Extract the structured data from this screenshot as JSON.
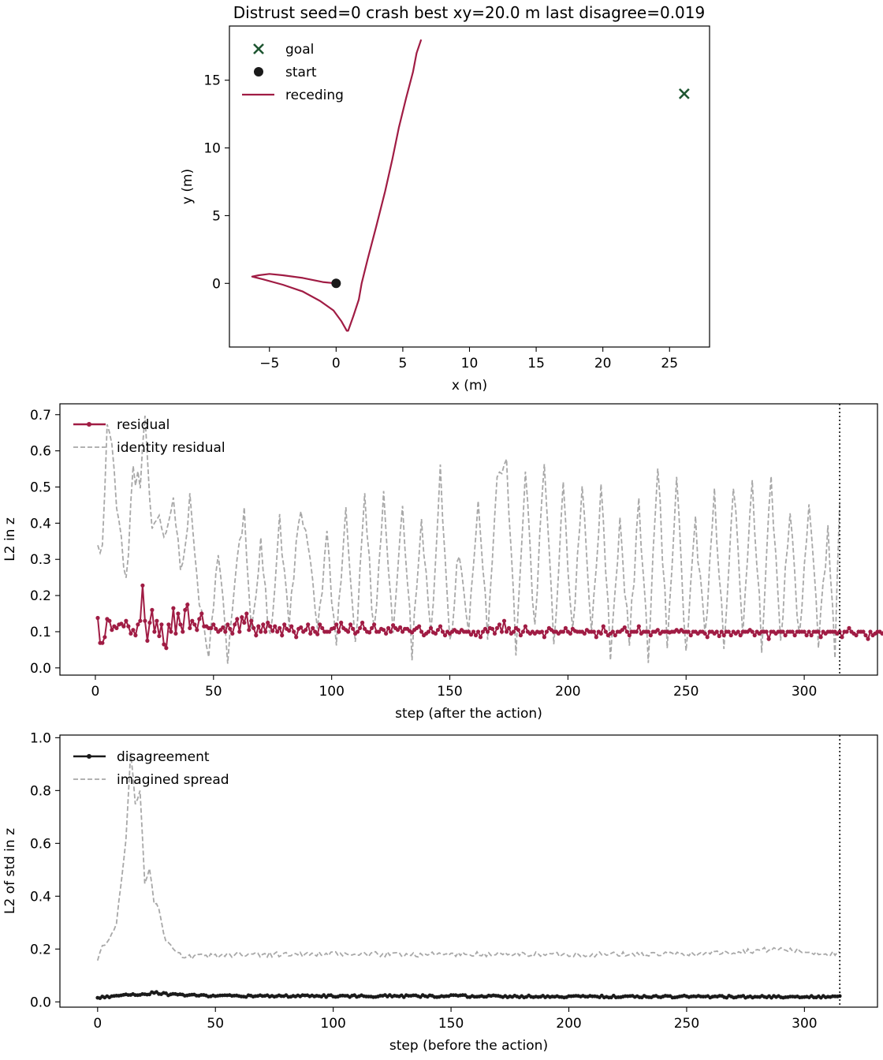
{
  "chart_data": [
    {
      "type": "line",
      "title": "Distrust  seed=0  crash  best xy=20.0 m  last disagree=0.019",
      "xlabel": "x (m)",
      "ylabel": "y (m)",
      "xlim": [
        -8,
        28
      ],
      "ylim": [
        -4.7,
        19.0
      ],
      "xticks": [
        -5,
        0,
        5,
        10,
        15,
        20,
        25
      ],
      "yticks": [
        0,
        5,
        10,
        15
      ],
      "legend_position": "upper-left",
      "grid": false,
      "colors": {
        "goal": "#1e5631",
        "start": "#1a1a1a",
        "receding": "#a01c44"
      },
      "goal": {
        "label": "goal",
        "x": 26.1,
        "y": 14.0
      },
      "start": {
        "label": "start",
        "x": 0.0,
        "y": 0.0
      },
      "series": [
        {
          "name": "receding",
          "x": [
            0,
            -1.0,
            -2.5,
            -4.0,
            -5.0,
            -5.8,
            -6.3,
            -5.5,
            -4.0,
            -2.5,
            -1.2,
            -0.2,
            0.4,
            0.8,
            0.9,
            1.3,
            1.7,
            1.9,
            2.4,
            3.0,
            3.6,
            4.2,
            4.7,
            5.2,
            5.7,
            6.1,
            6.3
          ],
          "y": [
            0,
            0.1,
            0.4,
            0.6,
            0.7,
            0.6,
            0.5,
            0.3,
            -0.1,
            -0.6,
            -1.3,
            -2.0,
            -2.8,
            -3.5,
            -3.5,
            -2.4,
            -1.2,
            0.0,
            1.8,
            4.2,
            6.8,
            9.2,
            11.5,
            13.7,
            15.6,
            17.0,
            18.0
          ]
        }
      ]
    },
    {
      "type": "line",
      "title": "",
      "xlabel": "step (after the action)",
      "ylabel": "L2 in z",
      "xlim": [
        -15,
        331
      ],
      "ylim": [
        -0.02,
        0.73
      ],
      "xticks": [
        0,
        50,
        100,
        150,
        200,
        250,
        300
      ],
      "yticks": [
        0.0,
        0.1,
        0.2,
        0.3,
        0.4,
        0.5,
        0.6,
        0.7
      ],
      "vline_x": 315,
      "legend_position": "upper-left",
      "grid": false,
      "colors": {
        "residual": "#a01c44",
        "identity": "#a8a8a8",
        "vline": "#000000"
      },
      "series": [
        {
          "name": "residual",
          "style": "solid-markers",
          "x_start": 1,
          "values": [
            0.138,
            0.069,
            0.069,
            0.085,
            0.135,
            0.13,
            0.105,
            0.115,
            0.11,
            0.12,
            0.122,
            0.115,
            0.13,
            0.115,
            0.095,
            0.105,
            0.09,
            0.12,
            0.13,
            0.228,
            0.13,
            0.075,
            0.125,
            0.16,
            0.1,
            0.13,
            0.088,
            0.12,
            0.065,
            0.055,
            0.12,
            0.1,
            0.165,
            0.095,
            0.15,
            0.12,
            0.1,
            0.16,
            0.175,
            0.11,
            0.13,
            0.12,
            0.105,
            0.135,
            0.15,
            0.115,
            0.115,
            0.11,
            0.11,
            0.12,
            0.108,
            0.1,
            0.105,
            0.112,
            0.1,
            0.12,
            0.108,
            0.095,
            0.12,
            0.135,
            0.1,
            0.14,
            0.125,
            0.15,
            0.105,
            0.13,
            0.11,
            0.09,
            0.115,
            0.1,
            0.12,
            0.1,
            0.125,
            0.115,
            0.102,
            0.115,
            0.1,
            0.11,
            0.09,
            0.12,
            0.108,
            0.103,
            0.115,
            0.1,
            0.085,
            0.108,
            0.112,
            0.1,
            0.105,
            0.12,
            0.095,
            0.11,
            0.1,
            0.093,
            0.12,
            0.11,
            0.1,
            0.1,
            0.1,
            0.108,
            0.11,
            0.12,
            0.1,
            0.125,
            0.11,
            0.105,
            0.1,
            0.12,
            0.108,
            0.095,
            0.1,
            0.11,
            0.125,
            0.108,
            0.1,
            0.098,
            0.11,
            0.12,
            0.1,
            0.1,
            0.108,
            0.105,
            0.095,
            0.11,
            0.1,
            0.118,
            0.11,
            0.105,
            0.112,
            0.1,
            0.108,
            0.108,
            0.102,
            0.098,
            0.105,
            0.11,
            0.115,
            0.1,
            0.09,
            0.095,
            0.1,
            0.11,
            0.098,
            0.095,
            0.105,
            0.115,
            0.1,
            0.09,
            0.1,
            0.095,
            0.1,
            0.105,
            0.1,
            0.098,
            0.105,
            0.1,
            0.1,
            0.1,
            0.092,
            0.1,
            0.09,
            0.1,
            0.085,
            0.1,
            0.108,
            0.1,
            0.11,
            0.108,
            0.095,
            0.11,
            0.12,
            0.1,
            0.13,
            0.1,
            0.11,
            0.095,
            0.1,
            0.11,
            0.105,
            0.09,
            0.1,
            0.115,
            0.1,
            0.095,
            0.1,
            0.095,
            0.1,
            0.098,
            0.1,
            0.085,
            0.1,
            0.11,
            0.105,
            0.1,
            0.1,
            0.095,
            0.1,
            0.1,
            0.11,
            0.1,
            0.095,
            0.108,
            0.102,
            0.1,
            0.1,
            0.1,
            0.095,
            0.105,
            0.1,
            0.1,
            0.1,
            0.085,
            0.1,
            0.095,
            0.115,
            0.1,
            0.09,
            0.095,
            0.1,
            0.09,
            0.1,
            0.1,
            0.105,
            0.112,
            0.1,
            0.09,
            0.1,
            0.1,
            0.1,
            0.115,
            0.095,
            0.1,
            0.1,
            0.1,
            0.09,
            0.1,
            0.1,
            0.105,
            0.095,
            0.1,
            0.1,
            0.1,
            0.098,
            0.1,
            0.1,
            0.105,
            0.1,
            0.105,
            0.1,
            0.1,
            0.1,
            0.09,
            0.1,
            0.1,
            0.095,
            0.1,
            0.1,
            0.095,
            0.085,
            0.1,
            0.1,
            0.095,
            0.1,
            0.088,
            0.1,
            0.09,
            0.1,
            0.1,
            0.09,
            0.1,
            0.095,
            0.1,
            0.09,
            0.1,
            0.1,
            0.1,
            0.105,
            0.1,
            0.09,
            0.1,
            0.095,
            0.1,
            0.1,
            0.1,
            0.08,
            0.1,
            0.1,
            0.095,
            0.1,
            0.1,
            0.1,
            0.09,
            0.1,
            0.1,
            0.1,
            0.09,
            0.1,
            0.1,
            0.1,
            0.1,
            0.09,
            0.1,
            0.09,
            0.1,
            0.1,
            0.1,
            0.085,
            0.1,
            0.095,
            0.1,
            0.1,
            0.1,
            0.1,
            0.095,
            0.1,
            0.085,
            0.1,
            0.1,
            0.11,
            0.1,
            0.095,
            0.09,
            0.1,
            0.1,
            0.1,
            0.09,
            0.08,
            0.1,
            0.09,
            0.095,
            0.1,
            0.1,
            0.095,
            0.1,
            0.15
          ]
        },
        {
          "name": "identity residual",
          "style": "dashed",
          "x_start": 1,
          "x_end": 315,
          "keypoints": [
            [
              1,
              0.33
            ],
            [
              3,
              0.32
            ],
            [
              5,
              0.68
            ],
            [
              7,
              0.6
            ],
            [
              10,
              0.4
            ],
            [
              13,
              0.23
            ],
            [
              16,
              0.55
            ],
            [
              19,
              0.5
            ],
            [
              21,
              0.68
            ],
            [
              24,
              0.38
            ],
            [
              27,
              0.42
            ],
            [
              30,
              0.36
            ],
            [
              33,
              0.5
            ],
            [
              36,
              0.25
            ],
            [
              40,
              0.47
            ],
            [
              44,
              0.2
            ],
            [
              48,
              0.05
            ],
            [
              52,
              0.3
            ],
            [
              56,
              0.04
            ],
            [
              60,
              0.33
            ],
            [
              63,
              0.42
            ],
            [
              66,
              0.1
            ],
            [
              70,
              0.36
            ],
            [
              74,
              0.07
            ],
            [
              78,
              0.4
            ],
            [
              82,
              0.1
            ],
            [
              86,
              0.42
            ],
            [
              90,
              0.35
            ],
            [
              94,
              0.1
            ],
            [
              98,
              0.35
            ],
            [
              102,
              0.07
            ],
            [
              106,
              0.44
            ],
            [
              110,
              0.05
            ],
            [
              114,
              0.48
            ],
            [
              118,
              0.09
            ],
            [
              122,
              0.49
            ],
            [
              126,
              0.1
            ],
            [
              130,
              0.45
            ],
            [
              134,
              0.04
            ],
            [
              138,
              0.4
            ],
            [
              142,
              0.09
            ],
            [
              146,
              0.54
            ],
            [
              150,
              0.06
            ],
            [
              154,
              0.33
            ],
            [
              158,
              0.1
            ],
            [
              162,
              0.44
            ],
            [
              166,
              0.1
            ],
            [
              170,
              0.53
            ],
            [
              174,
              0.57
            ],
            [
              178,
              0.06
            ],
            [
              182,
              0.55
            ],
            [
              186,
              0.1
            ],
            [
              190,
              0.57
            ],
            [
              194,
              0.06
            ],
            [
              198,
              0.5
            ],
            [
              202,
              0.08
            ],
            [
              206,
              0.52
            ],
            [
              210,
              0.1
            ],
            [
              214,
              0.49
            ],
            [
              218,
              0.05
            ],
            [
              222,
              0.4
            ],
            [
              226,
              0.07
            ],
            [
              230,
              0.45
            ],
            [
              234,
              0.04
            ],
            [
              238,
              0.56
            ],
            [
              242,
              0.07
            ],
            [
              246,
              0.52
            ],
            [
              250,
              0.04
            ],
            [
              254,
              0.39
            ],
            [
              258,
              0.08
            ],
            [
              262,
              0.47
            ],
            [
              266,
              0.06
            ],
            [
              270,
              0.52
            ],
            [
              274,
              0.08
            ],
            [
              278,
              0.52
            ],
            [
              282,
              0.07
            ],
            [
              286,
              0.52
            ],
            [
              290,
              0.08
            ],
            [
              294,
              0.43
            ],
            [
              298,
              0.07
            ],
            [
              302,
              0.45
            ],
            [
              306,
              0.08
            ],
            [
              310,
              0.38
            ],
            [
              313,
              0.03
            ],
            [
              315,
              0.44
            ]
          ]
        }
      ]
    },
    {
      "type": "line",
      "title": "",
      "xlabel": "step (before the action)",
      "ylabel": "L2 of std in z",
      "xlim": [
        -16,
        331
      ],
      "ylim": [
        -0.02,
        1.01
      ],
      "xticks": [
        0,
        50,
        100,
        150,
        200,
        250,
        300
      ],
      "yticks": [
        0.0,
        0.2,
        0.4,
        0.6,
        0.8,
        1.0
      ],
      "vline_x": 315,
      "legend_position": "upper-left",
      "grid": false,
      "colors": {
        "disagreement": "#1a1a1a",
        "spread": "#a8a8a8",
        "vline": "#000000"
      },
      "series": [
        {
          "name": "disagreement",
          "style": "solid-markers",
          "x_start": 0,
          "x_end": 315,
          "keypoints": [
            [
              0,
              0.015
            ],
            [
              5,
              0.02
            ],
            [
              10,
              0.027
            ],
            [
              15,
              0.028
            ],
            [
              20,
              0.03
            ],
            [
              25,
              0.035
            ],
            [
              30,
              0.028
            ],
            [
              40,
              0.025
            ],
            [
              60,
              0.022
            ],
            [
              100,
              0.022
            ],
            [
              150,
              0.022
            ],
            [
              200,
              0.02
            ],
            [
              250,
              0.02
            ],
            [
              300,
              0.019
            ],
            [
              315,
              0.019
            ]
          ]
        },
        {
          "name": "imagined spread",
          "style": "dashed",
          "x_start": 0,
          "x_end": 315,
          "keypoints": [
            [
              0,
              0.15
            ],
            [
              2,
              0.22
            ],
            [
              5,
              0.23
            ],
            [
              8,
              0.3
            ],
            [
              10,
              0.45
            ],
            [
              12,
              0.62
            ],
            [
              14,
              0.95
            ],
            [
              16,
              0.75
            ],
            [
              18,
              0.8
            ],
            [
              20,
              0.45
            ],
            [
              22,
              0.5
            ],
            [
              24,
              0.38
            ],
            [
              26,
              0.35
            ],
            [
              28,
              0.25
            ],
            [
              30,
              0.22
            ],
            [
              33,
              0.19
            ],
            [
              36,
              0.17
            ],
            [
              40,
              0.17
            ],
            [
              60,
              0.18
            ],
            [
              100,
              0.18
            ],
            [
              150,
              0.18
            ],
            [
              200,
              0.18
            ],
            [
              250,
              0.18
            ],
            [
              290,
              0.2
            ],
            [
              300,
              0.19
            ],
            [
              315,
              0.18
            ]
          ]
        }
      ]
    }
  ]
}
